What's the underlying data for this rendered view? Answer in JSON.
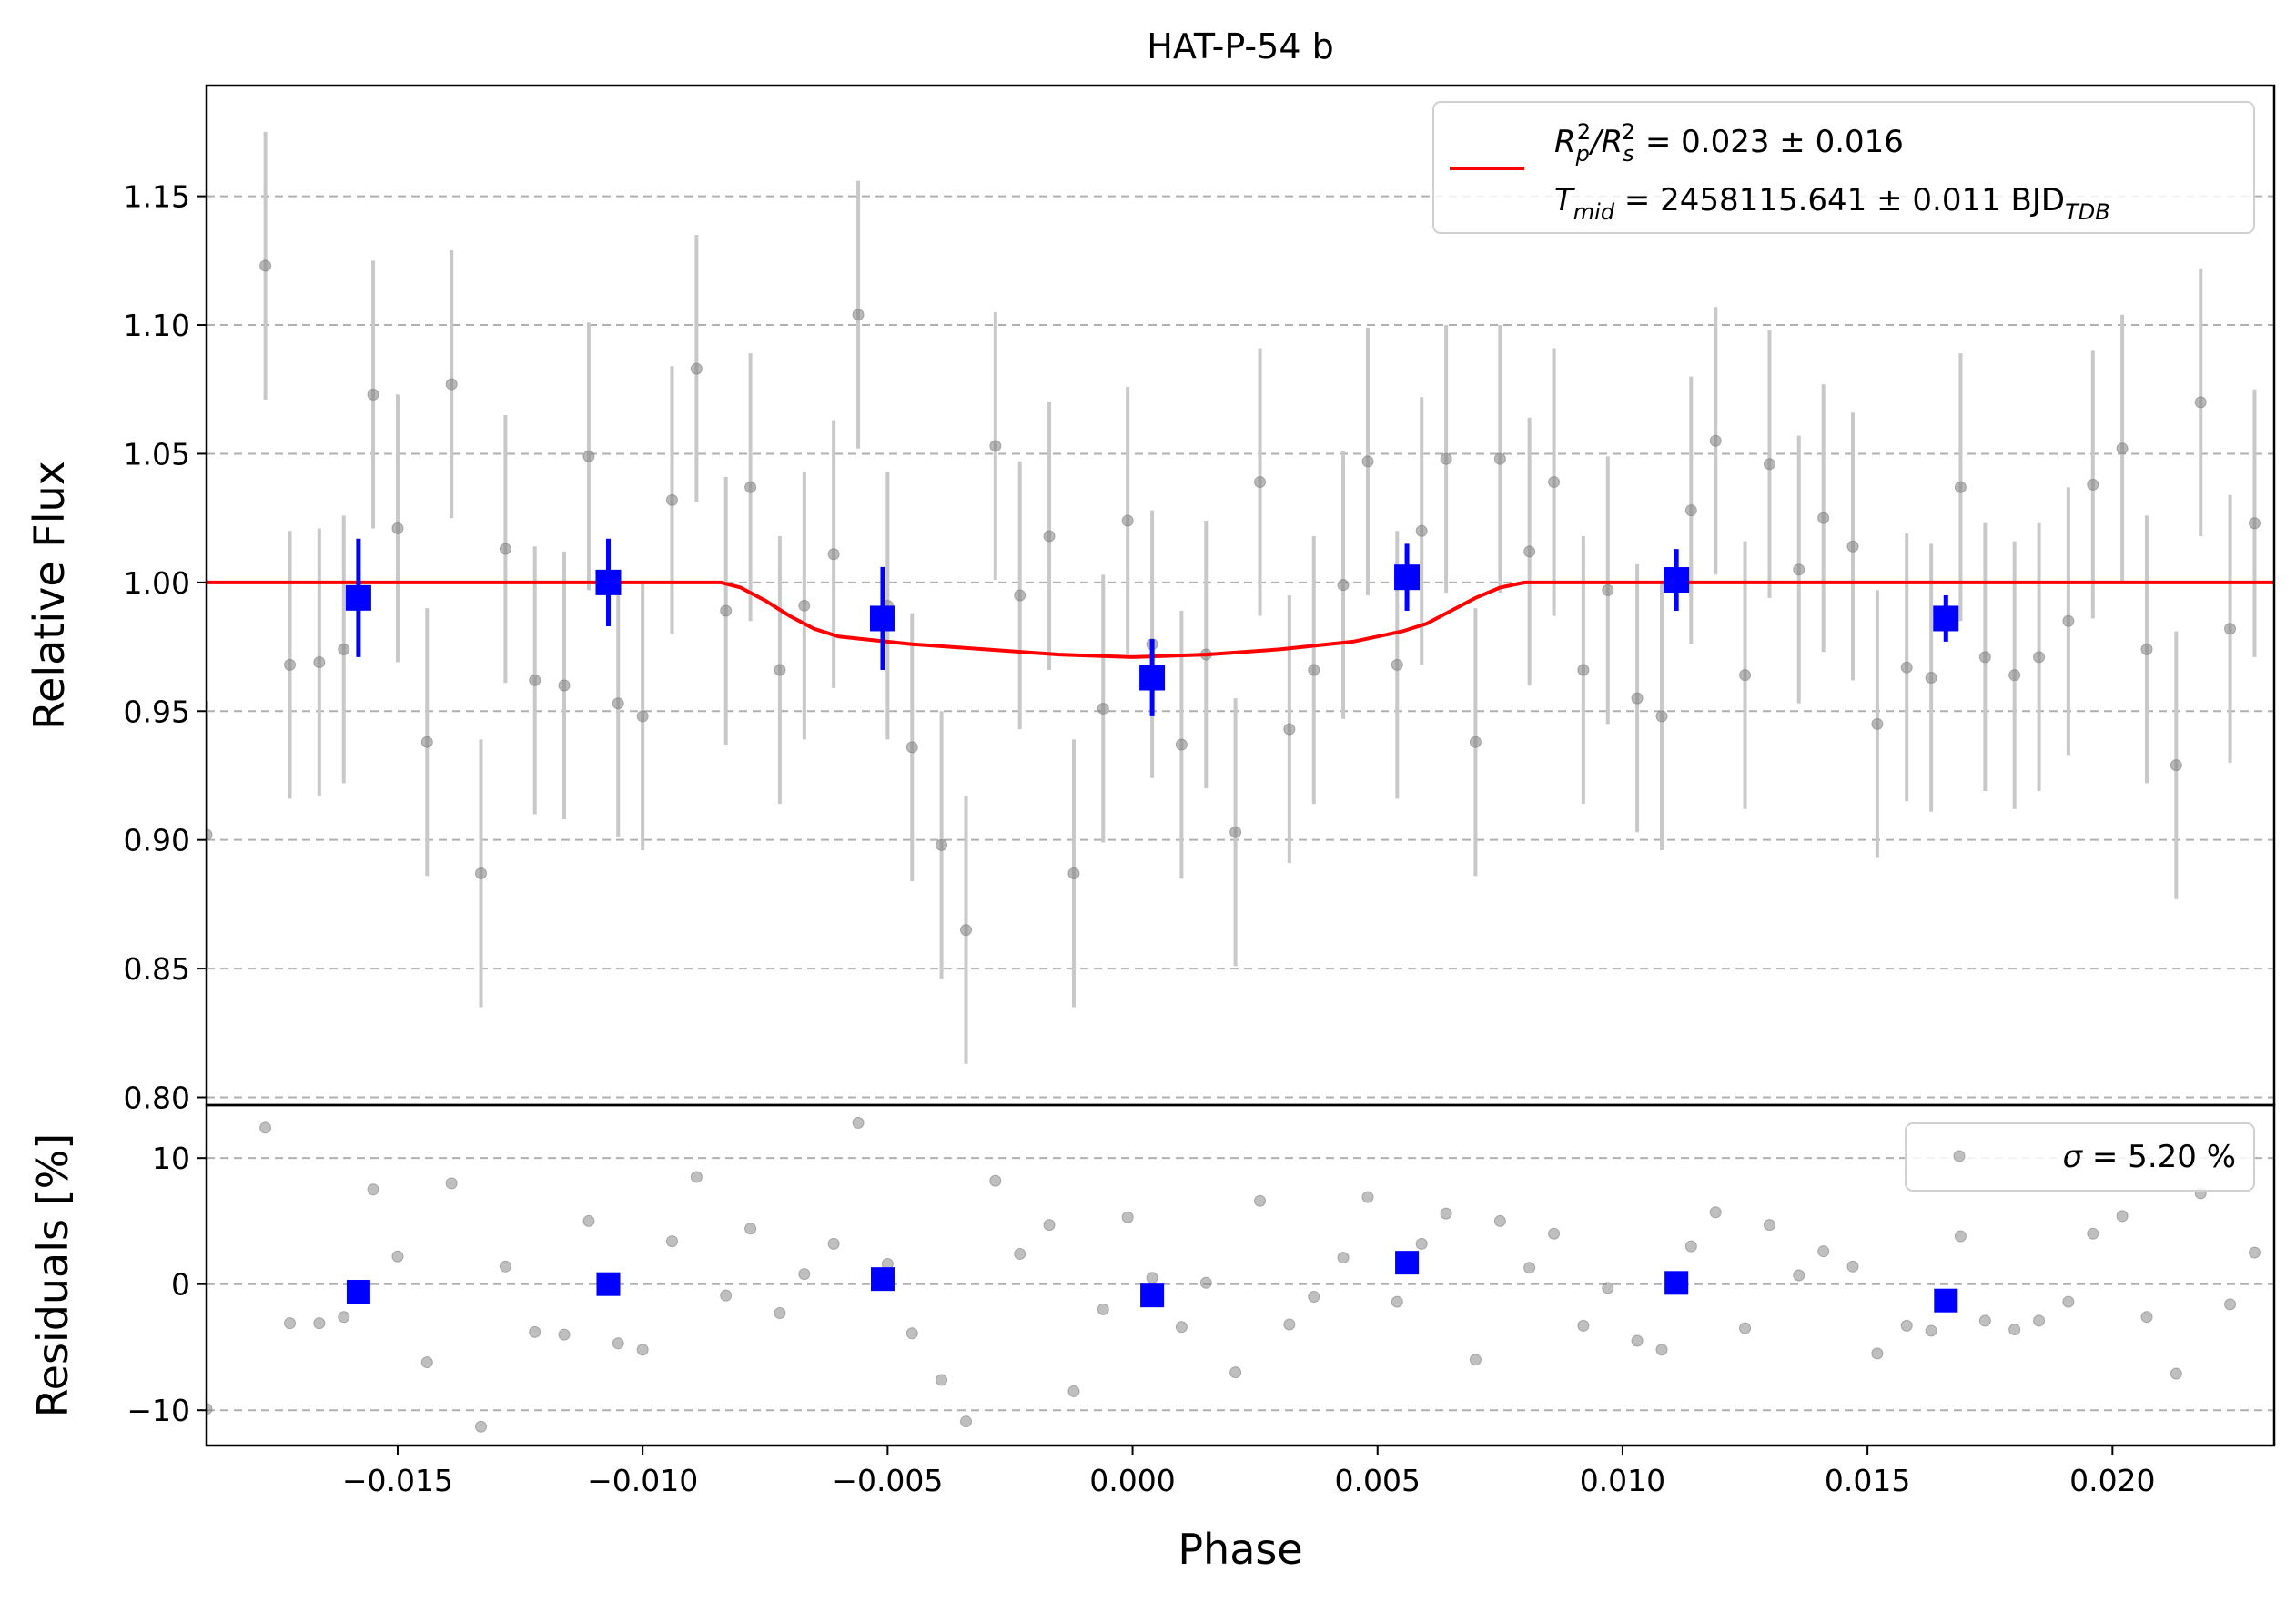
{
  "chart_data": [
    {
      "type": "scatter",
      "title": "HAT-P-54 b",
      "ylabel": "Relative Flux",
      "xlim": [
        -0.0189,
        0.0233
      ],
      "ylim": [
        0.797,
        1.193
      ],
      "xticks": [
        -0.015,
        -0.01,
        -0.005,
        0.0,
        0.005,
        0.01,
        0.015,
        0.02
      ],
      "xtick_labels": [
        "−0.015",
        "−0.010",
        "−0.005",
        "0.000",
        "0.005",
        "0.010",
        "0.015",
        "0.020"
      ],
      "yticks": [
        0.8,
        0.85,
        0.9,
        0.95,
        1.0,
        1.05,
        1.1,
        1.15
      ],
      "ytick_labels": [
        "0.80",
        "0.85",
        "0.90",
        "0.95",
        "1.00",
        "1.05",
        "1.10",
        "1.15"
      ],
      "grid": "horizontal dashed",
      "legend_placement": "top-right",
      "legend": {
        "line1_prefix": "R",
        "line1_sub1": "p",
        "line1_sup1": "2",
        "line1_sep": "/R",
        "line1_sub2": "s",
        "line1_sup2": "2",
        "line1_value": " = 0.023 ± 0.016",
        "line2_prefix": "T",
        "line2_sub": "mid",
        "line2_value": " = 2458115.641 ± 0.011 BJD",
        "line2_unit_sub": "TDB"
      },
      "colors": {
        "raw": "#808080",
        "raw_err": "#c8c8c8",
        "binned": "#0000ff",
        "model": "#ff0000",
        "grid": "#b0b0b0"
      },
      "raw_points": {
        "x": [
          -0.0189,
          -0.0177,
          -0.0172,
          -0.0166,
          -0.0161,
          -0.0155,
          -0.015,
          -0.0144,
          -0.0139,
          -0.0133,
          -0.0128,
          -0.0122,
          -0.0116,
          -0.0111,
          -0.0105,
          -0.01,
          -0.0094,
          -0.0089,
          -0.0083,
          -0.0078,
          -0.0072,
          -0.0067,
          -0.0061,
          -0.0056,
          -0.005,
          -0.0045,
          -0.0039,
          -0.0034,
          -0.0028,
          -0.0023,
          -0.0017,
          -0.0012,
          -0.0006,
          -0.0001,
          0.0004,
          0.001,
          0.0015,
          0.0021,
          0.0026,
          0.0032,
          0.0037,
          0.0043,
          0.0048,
          0.0054,
          0.0059,
          0.0064,
          0.007,
          0.0075,
          0.0081,
          0.0086,
          0.0092,
          0.0097,
          0.0103,
          0.0108,
          0.0114,
          0.0119,
          0.0125,
          0.013,
          0.0136,
          0.0141,
          0.0147,
          0.0152,
          0.0158,
          0.0163,
          0.0169,
          0.0174,
          0.018,
          0.0185,
          0.0191,
          0.0196,
          0.0202,
          0.0207,
          0.0213,
          0.0218,
          0.0224,
          0.0229,
          0.0235
        ],
        "y": [
          0.902,
          1.123,
          0.968,
          0.969,
          0.974,
          1.073,
          1.021,
          0.938,
          1.077,
          0.887,
          1.013,
          0.962,
          0.96,
          1.049,
          0.953,
          0.948,
          1.032,
          1.083,
          0.989,
          1.037,
          0.966,
          0.991,
          1.011,
          1.104,
          0.991,
          0.936,
          0.898,
          0.865,
          1.053,
          0.995,
          1.018,
          0.887,
          0.951,
          1.024,
          0.976,
          0.937,
          0.972,
          0.903,
          1.039,
          0.943,
          0.966,
          0.999,
          1.047,
          0.968,
          1.02,
          1.048,
          0.938,
          1.048,
          1.012,
          1.039,
          0.966,
          0.997,
          0.955,
          0.948,
          1.028,
          1.055,
          0.964,
          1.046,
          1.005,
          1.025,
          1.014,
          0.945,
          0.967,
          0.963,
          1.037,
          0.971,
          0.964,
          0.971,
          0.985,
          1.038,
          1.052,
          0.974,
          0.929,
          1.07,
          0.982,
          1.023,
          1.022
        ],
        "err": 0.052
      },
      "binned_points": {
        "x": [
          -0.0158,
          -0.0107,
          -0.0051,
          0.0004,
          0.0056,
          0.0111,
          0.0166
        ],
        "y": [
          0.994,
          1.0,
          0.986,
          0.963,
          1.002,
          1.001,
          0.986
        ],
        "err": [
          0.023,
          0.017,
          0.02,
          0.015,
          0.013,
          0.012,
          0.009
        ]
      },
      "model": {
        "name": "transit model",
        "x": [
          -0.0189,
          -0.0084,
          -0.008,
          -0.0075,
          -0.007,
          -0.0065,
          -0.006,
          -0.0055,
          -0.0045,
          -0.003,
          -0.0015,
          0.0,
          0.0015,
          0.003,
          0.0045,
          0.0055,
          0.006,
          0.0065,
          0.007,
          0.0075,
          0.008,
          0.0084,
          0.0233
        ],
        "y": [
          1.0,
          1.0,
          0.998,
          0.993,
          0.987,
          0.982,
          0.979,
          0.978,
          0.976,
          0.974,
          0.972,
          0.971,
          0.972,
          0.974,
          0.977,
          0.981,
          0.984,
          0.989,
          0.994,
          0.998,
          1.0,
          1.0,
          1.0
        ]
      }
    },
    {
      "type": "scatter",
      "xlabel": "Phase",
      "ylabel": "Residuals [%]",
      "xlim": [
        -0.0189,
        0.0233
      ],
      "ylim": [
        -12.8,
        14.2
      ],
      "yticks": [
        -10,
        0,
        10
      ],
      "ytick_labels": [
        "−10",
        "0",
        "10"
      ],
      "grid": "horizontal dashed",
      "legend_placement": "top-right",
      "legend": {
        "sigma_symbol": "σ",
        "sigma_value": " = 5.20 %"
      },
      "raw_points": {
        "x": [
          -0.0189,
          -0.0177,
          -0.0172,
          -0.0166,
          -0.0161,
          -0.0155,
          -0.015,
          -0.0144,
          -0.0139,
          -0.0133,
          -0.0128,
          -0.0122,
          -0.0116,
          -0.0111,
          -0.0105,
          -0.01,
          -0.0094,
          -0.0089,
          -0.0083,
          -0.0078,
          -0.0072,
          -0.0067,
          -0.0061,
          -0.0056,
          -0.005,
          -0.0045,
          -0.0039,
          -0.0034,
          -0.0028,
          -0.0023,
          -0.0017,
          -0.0012,
          -0.0006,
          -0.0001,
          0.0004,
          0.001,
          0.0015,
          0.0021,
          0.0026,
          0.0032,
          0.0037,
          0.0043,
          0.0048,
          0.0054,
          0.0059,
          0.0064,
          0.007,
          0.0075,
          0.0081,
          0.0086,
          0.0092,
          0.0097,
          0.0103,
          0.0108,
          0.0114,
          0.0119,
          0.0125,
          0.013,
          0.0136,
          0.0141,
          0.0147,
          0.0152,
          0.0158,
          0.0163,
          0.0169,
          0.0174,
          0.018,
          0.0185,
          0.0191,
          0.0196,
          0.0202,
          0.0207,
          0.0213,
          0.0218,
          0.0224,
          0.0229,
          0.0235
        ],
        "y": [
          -9.9,
          12.4,
          -3.1,
          -3.1,
          -2.6,
          7.5,
          2.2,
          -6.2,
          8.0,
          -11.3,
          1.4,
          -3.8,
          -4.0,
          5.0,
          -4.7,
          -5.2,
          3.4,
          8.5,
          -0.9,
          4.4,
          -2.3,
          0.8,
          3.2,
          12.8,
          1.6,
          -3.9,
          -7.6,
          -10.9,
          8.2,
          2.4,
          4.7,
          -8.5,
          -2.0,
          5.3,
          0.5,
          -3.4,
          0.1,
          -7.0,
          6.6,
          -3.2,
          -1.0,
          2.1,
          6.9,
          -1.4,
          3.2,
          5.6,
          -6.0,
          5.0,
          1.3,
          4.0,
          -3.3,
          -0.3,
          -4.5,
          -5.2,
          3.0,
          5.7,
          -3.5,
          4.7,
          0.7,
          2.6,
          1.4,
          -5.5,
          -3.3,
          -3.7,
          3.8,
          -2.9,
          -3.6,
          -2.9,
          -1.4,
          4.0,
          5.4,
          -2.6,
          -7.1,
          7.2,
          -1.6,
          2.5,
          2.3
        ]
      },
      "binned_points": {
        "x": [
          -0.0158,
          -0.0107,
          -0.0051,
          0.0004,
          0.0056,
          0.0111,
          0.0166
        ],
        "y": [
          -0.6,
          0.0,
          0.4,
          -0.9,
          1.7,
          0.1,
          -1.3
        ]
      }
    }
  ]
}
